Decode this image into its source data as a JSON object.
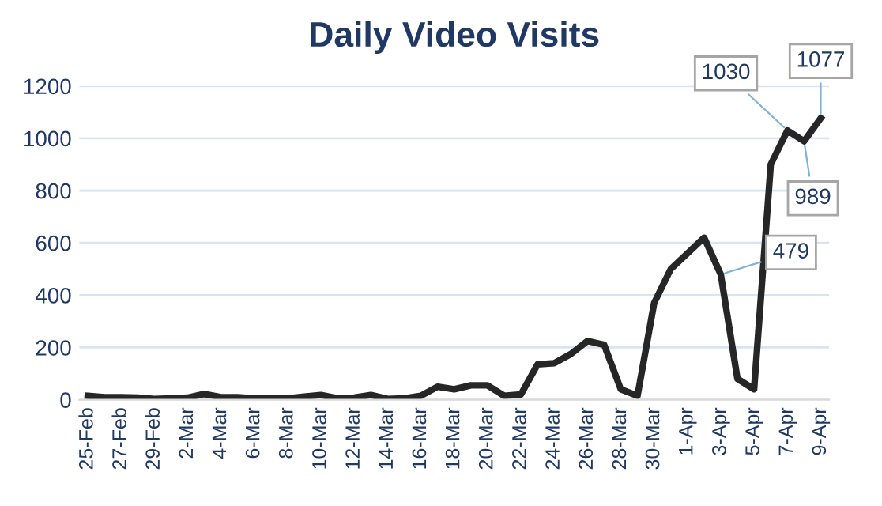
{
  "chart_data": {
    "type": "line",
    "title": "Daily Video Visits",
    "categories": [
      "25-Feb",
      null,
      "27-Feb",
      null,
      "29-Feb",
      null,
      "2-Mar",
      null,
      "4-Mar",
      null,
      "6-Mar",
      null,
      "8-Mar",
      null,
      "10-Mar",
      null,
      "12-Mar",
      null,
      "14-Mar",
      null,
      "16-Mar",
      null,
      "18-Mar",
      null,
      "20-Mar",
      null,
      "22-Mar",
      null,
      "24-Mar",
      null,
      "26-Mar",
      null,
      "28-Mar",
      null,
      "30-Mar",
      null,
      "1-Apr",
      null,
      "3-Apr",
      null,
      "5-Apr",
      null,
      "7-Apr",
      null,
      "9-Apr"
    ],
    "series": [
      {
        "color": "#262626",
        "values": [
          15,
          10,
          10,
          8,
          3,
          5,
          8,
          22,
          10,
          10,
          5,
          5,
          5,
          12,
          18,
          5,
          8,
          18,
          3,
          5,
          15,
          50,
          40,
          55,
          55,
          15,
          20,
          135,
          140,
          175,
          225,
          210,
          40,
          15,
          370,
          500,
          560,
          620,
          479,
          80,
          40,
          900,
          1030,
          989,
          1077
        ],
        "value_labels": [
          null,
          null,
          null,
          null,
          null,
          null,
          null,
          null,
          null,
          null,
          null,
          null,
          null,
          null,
          null,
          null,
          null,
          null,
          null,
          null,
          null,
          null,
          null,
          null,
          null,
          null,
          null,
          null,
          null,
          null,
          null,
          null,
          null,
          null,
          null,
          null,
          null,
          null,
          "479",
          null,
          null,
          null,
          "1030",
          "989",
          "1077"
        ]
      }
    ],
    "ylim": [
      0,
      1200
    ],
    "yticks": [
      0,
      200,
      400,
      600,
      800,
      1000,
      1200
    ],
    "grid": "y",
    "marker": "none",
    "line_style": "solid"
  }
}
